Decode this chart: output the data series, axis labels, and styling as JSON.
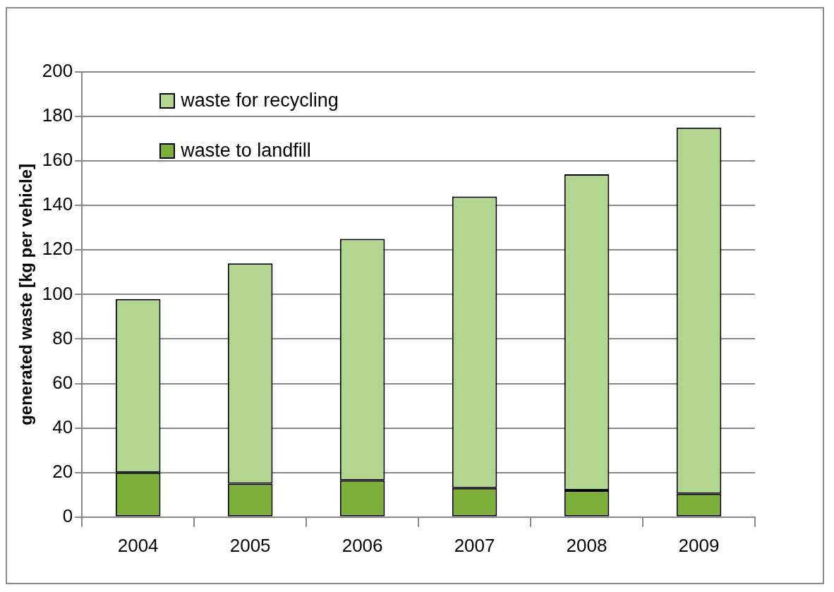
{
  "chart_data": {
    "type": "bar",
    "stacked": true,
    "ylabel": "generated waste [kg per vehicle]",
    "categories": [
      "2004",
      "2005",
      "2006",
      "2007",
      "2008",
      "2009"
    ],
    "series": [
      {
        "name": "waste to landfill",
        "color": "#7db03a",
        "values": [
          20,
          15,
          16.5,
          13,
          12,
          10.5
        ]
      },
      {
        "name": "waste for recycling",
        "color": "#b2d590",
        "values": [
          78,
          99,
          108.5,
          131,
          142,
          164.5
        ]
      }
    ],
    "ylim": [
      0,
      200
    ],
    "yticks": [
      0,
      20,
      40,
      60,
      80,
      100,
      120,
      140,
      160,
      180,
      200
    ],
    "grid": "y",
    "legend": "top left"
  }
}
